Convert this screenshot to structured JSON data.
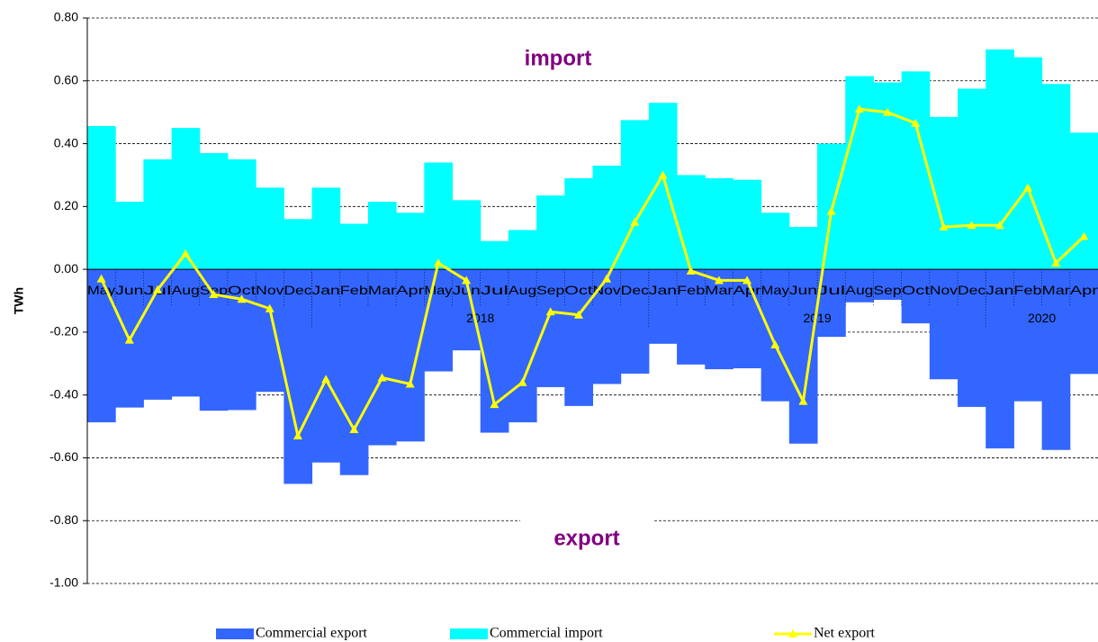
{
  "chart_data": {
    "type": "bar-line",
    "y_label": "TWh",
    "annotations": [
      "import",
      "export"
    ],
    "categories": [
      "May",
      "Jun",
      "Jul",
      "Aug",
      "Sep",
      "Oct",
      "Nov",
      "Dec",
      "Jan",
      "Feb",
      "Mar",
      "Apr",
      "May",
      "Jun",
      "Jul",
      "Aug",
      "Sep",
      "Oct",
      "Nov",
      "Dec",
      "Jan",
      "Feb",
      "Mar",
      "Apr",
      "May",
      "Jun",
      "Jul",
      "Aug",
      "Sep",
      "Oct",
      "Nov",
      "Dec",
      "Jan",
      "Feb",
      "Mar",
      "Apr"
    ],
    "year_groups": [
      {
        "label": "2018",
        "start": 8,
        "end": 19
      },
      {
        "label": "2019",
        "start": 20,
        "end": 31
      },
      {
        "label": "2020",
        "start": 32,
        "end": 35
      }
    ],
    "series": [
      {
        "name": "Commercial export",
        "color": "#3366ff",
        "kind": "bar",
        "values": [
          -0.487,
          -0.44,
          -0.415,
          -0.405,
          -0.45,
          -0.448,
          -0.39,
          -0.683,
          -0.615,
          -0.655,
          -0.56,
          -0.548,
          -0.325,
          -0.258,
          -0.52,
          -0.487,
          -0.375,
          -0.435,
          -0.365,
          -0.332,
          -0.237,
          -0.303,
          -0.318,
          -0.315,
          -0.42,
          -0.555,
          -0.215,
          -0.105,
          -0.097,
          -0.172,
          -0.35,
          -0.438,
          -0.57,
          -0.42,
          -0.575,
          -0.333
        ]
      },
      {
        "name": "Commercial import",
        "color": "#00ffff",
        "kind": "bar",
        "values": [
          0.456,
          0.215,
          0.35,
          0.45,
          0.37,
          0.35,
          0.26,
          0.16,
          0.26,
          0.145,
          0.215,
          0.18,
          0.34,
          0.22,
          0.09,
          0.125,
          0.235,
          0.29,
          0.33,
          0.475,
          0.53,
          0.3,
          0.29,
          0.285,
          0.18,
          0.135,
          0.4,
          0.615,
          0.595,
          0.63,
          0.485,
          0.575,
          0.7,
          0.675,
          0.59,
          0.435
        ]
      },
      {
        "name": "Net export",
        "color": "#ffff00",
        "kind": "line",
        "values": [
          -0.03,
          -0.225,
          -0.065,
          0.05,
          -0.08,
          -0.095,
          -0.125,
          -0.53,
          -0.35,
          -0.51,
          -0.345,
          -0.365,
          0.02,
          -0.035,
          -0.43,
          -0.36,
          -0.135,
          -0.145,
          -0.03,
          0.15,
          0.3,
          -0.005,
          -0.035,
          -0.035,
          -0.24,
          -0.42,
          0.185,
          0.51,
          0.5,
          0.465,
          0.135,
          0.14,
          0.14,
          0.26,
          0.02,
          0.105
        ]
      }
    ],
    "ylim": [
      -1.0,
      0.8
    ],
    "yticks": [
      {
        "value": -1.0,
        "label": "-1.00"
      },
      {
        "value": -0.8,
        "label": "-0.80"
      },
      {
        "value": -0.6,
        "label": "-0.60"
      },
      {
        "value": -0.4,
        "label": "-0.40"
      },
      {
        "value": -0.2,
        "label": "-0.20"
      },
      {
        "value": 0,
        "label": "0.00"
      },
      {
        "value": 0.2,
        "label": "0.20"
      },
      {
        "value": 0.4,
        "label": "0.40"
      },
      {
        "value": 0.6,
        "label": "0.60"
      },
      {
        "value": 0.8,
        "label": "0.80"
      }
    ],
    "grid": true,
    "legend": "bottom"
  }
}
